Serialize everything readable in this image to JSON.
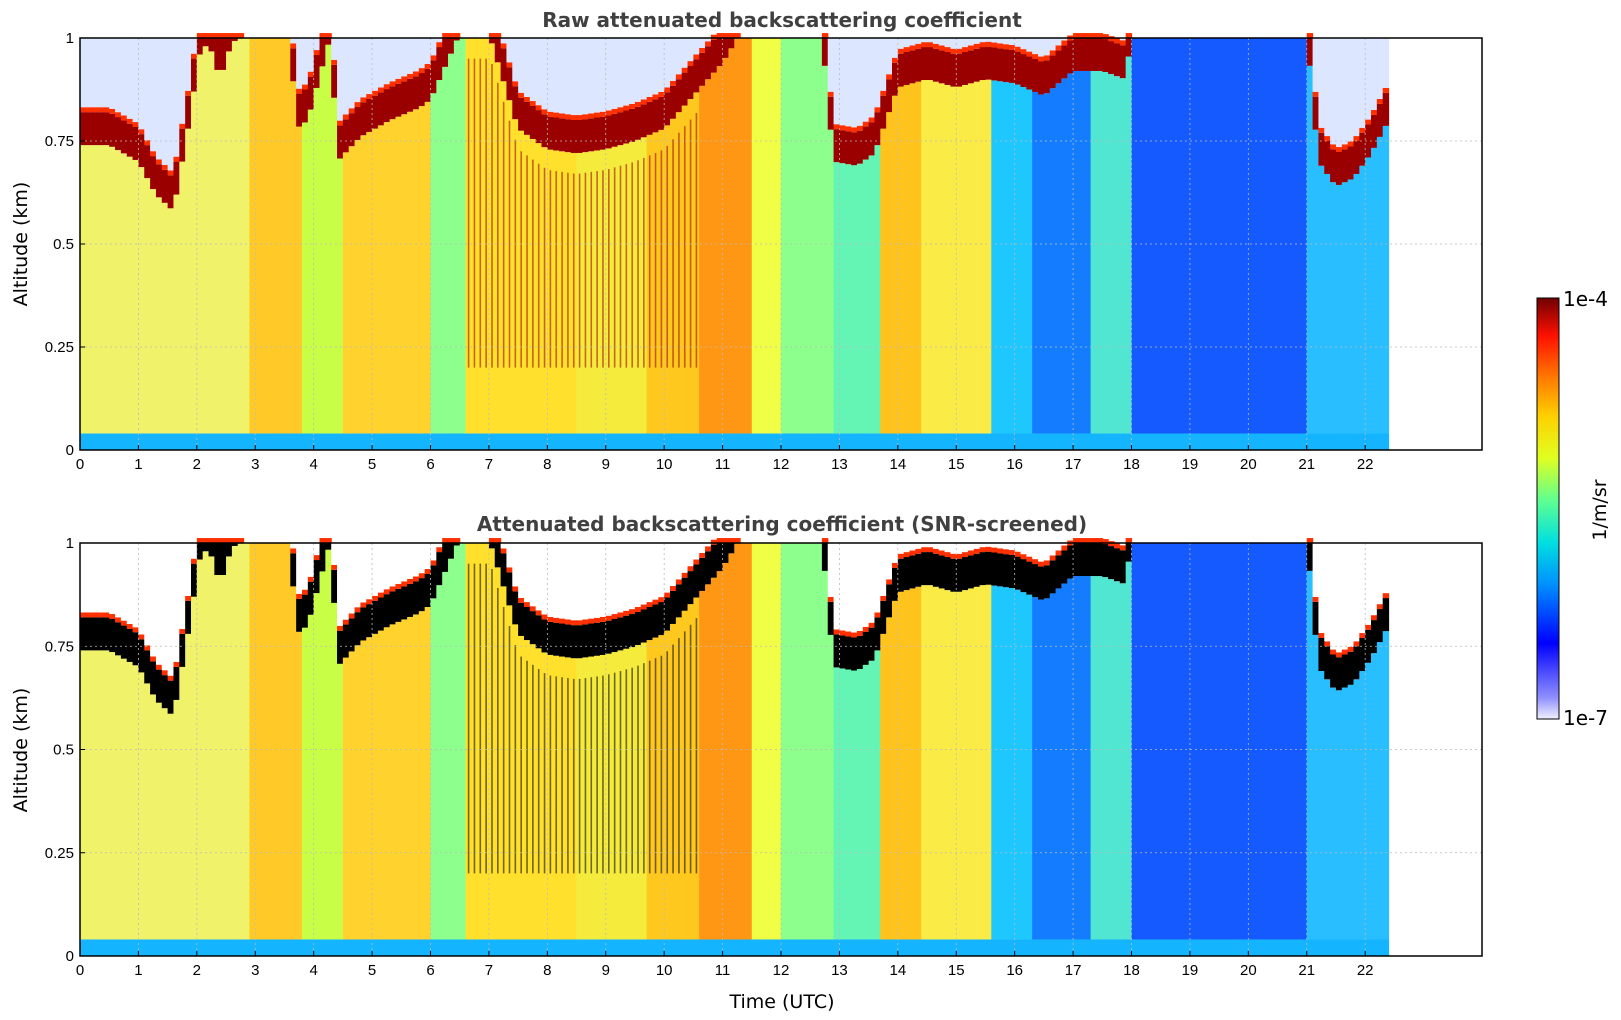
{
  "chart_data": [
    {
      "type": "heatmap",
      "title": "Raw attenuated backscattering coefficient",
      "xlabel": "",
      "ylabel": "Altitude (km)",
      "xlim": [
        0,
        24
      ],
      "ylim": [
        0,
        1
      ],
      "xticks": [
        "0",
        "1",
        "2",
        "3",
        "4",
        "5",
        "6",
        "7",
        "8",
        "9",
        "10",
        "11",
        "12",
        "13",
        "14",
        "15",
        "16",
        "17",
        "18",
        "19",
        "20",
        "21",
        "22"
      ],
      "yticks": [
        "0",
        "0.25",
        "0.5",
        "0.75",
        "1"
      ],
      "grid": true,
      "data_end_hour": 22.4,
      "color_scale": "log",
      "clim": [
        "1e-7",
        "1e-4"
      ],
      "screened": false
    },
    {
      "type": "heatmap",
      "title": "Attenuated backscattering coefficient (SNR-screened)",
      "xlabel": "Time (UTC)",
      "ylabel": "Altitude (km)",
      "xlim": [
        0,
        24
      ],
      "ylim": [
        0,
        1
      ],
      "xticks": [
        "0",
        "1",
        "2",
        "3",
        "4",
        "5",
        "6",
        "7",
        "8",
        "9",
        "10",
        "11",
        "12",
        "13",
        "14",
        "15",
        "16",
        "17",
        "18",
        "19",
        "20",
        "21",
        "22"
      ],
      "yticks": [
        "0",
        "0.25",
        "0.5",
        "0.75",
        "1"
      ],
      "grid": true,
      "data_end_hour": 22.4,
      "color_scale": "log",
      "clim": [
        "1e-7",
        "1e-4"
      ],
      "screened": true
    }
  ],
  "colorbar": {
    "label": "1/m/sr",
    "max_label": "1e-4",
    "min_label": "1e-7",
    "colormap": "jet",
    "colors": [
      "#f0f0ff",
      "#9090ff",
      "#0000ff",
      "#0090ff",
      "#00e0e0",
      "#60ff90",
      "#e0ff20",
      "#ffd000",
      "#ff7000",
      "#ff1000",
      "#a00000",
      "#700000"
    ]
  },
  "profile": {
    "cloud_base_km": [
      [
        0,
        0.74
      ],
      [
        0.5,
        0.74
      ],
      [
        1.0,
        0.7
      ],
      [
        1.3,
        0.62
      ],
      [
        1.6,
        0.58
      ],
      [
        1.85,
        0.78
      ],
      [
        2.05,
        0.96
      ],
      [
        2.2,
        0.99
      ],
      [
        2.4,
        0.9
      ],
      [
        2.6,
        0.99
      ],
      [
        2.95,
        1.01
      ],
      [
        3.6,
        1.01
      ],
      [
        3.7,
        0.78
      ],
      [
        3.9,
        0.8
      ],
      [
        4.3,
        1.01
      ],
      [
        4.4,
        0.7
      ],
      [
        4.8,
        0.76
      ],
      [
        5.3,
        0.8
      ],
      [
        5.8,
        0.83
      ],
      [
        6.0,
        0.85
      ],
      [
        6.5,
        1.01
      ],
      [
        7.0,
        1.01
      ],
      [
        7.5,
        0.78
      ],
      [
        8.0,
        0.73
      ],
      [
        8.5,
        0.72
      ],
      [
        9.0,
        0.73
      ],
      [
        9.5,
        0.75
      ],
      [
        10.0,
        0.78
      ],
      [
        10.5,
        0.86
      ],
      [
        11.0,
        0.94
      ],
      [
        11.3,
        1.01
      ],
      [
        12.7,
        1.01
      ],
      [
        12.9,
        0.7
      ],
      [
        13.3,
        0.69
      ],
      [
        13.6,
        0.72
      ],
      [
        13.8,
        0.8
      ],
      [
        14.0,
        0.88
      ],
      [
        14.5,
        0.9
      ],
      [
        15.0,
        0.88
      ],
      [
        15.5,
        0.9
      ],
      [
        16.0,
        0.89
      ],
      [
        16.5,
        0.86
      ],
      [
        17.0,
        0.92
      ],
      [
        17.5,
        0.92
      ],
      [
        17.9,
        0.9
      ],
      [
        18.0,
        1.01
      ],
      [
        21.0,
        1.01
      ],
      [
        21.2,
        0.7
      ],
      [
        21.5,
        0.64
      ],
      [
        21.8,
        0.66
      ],
      [
        22.1,
        0.72
      ],
      [
        22.4,
        0.8
      ]
    ],
    "regimes": [
      {
        "t0": 0.0,
        "t1": 2.9,
        "color": "#f0f26a",
        "rain": false
      },
      {
        "t0": 2.9,
        "t1": 3.8,
        "color": "#ffca28",
        "rain": false
      },
      {
        "t0": 3.8,
        "t1": 4.5,
        "color": "#c8ff46",
        "rain": false
      },
      {
        "t0": 4.5,
        "t1": 6.0,
        "color": "#ffd22d",
        "rain": false
      },
      {
        "t0": 6.0,
        "t1": 6.6,
        "color": "#8cff8c",
        "rain": false
      },
      {
        "t0": 6.6,
        "t1": 8.5,
        "color": "#ffe12d",
        "rain": true
      },
      {
        "t0": 8.5,
        "t1": 9.7,
        "color": "#f5eb3c",
        "rain": true
      },
      {
        "t0": 9.7,
        "t1": 10.6,
        "color": "#ffc81e",
        "rain": true
      },
      {
        "t0": 10.6,
        "t1": 11.5,
        "color": "#ff9614",
        "rain": false
      },
      {
        "t0": 11.5,
        "t1": 12.0,
        "color": "#f0ff46",
        "rain": false
      },
      {
        "t0": 12.0,
        "t1": 12.9,
        "color": "#8cff8c",
        "rain": false
      },
      {
        "t0": 12.9,
        "t1": 13.7,
        "color": "#64f5b4",
        "rain": false
      },
      {
        "t0": 13.7,
        "t1": 14.4,
        "color": "#ffc31e",
        "rain": false
      },
      {
        "t0": 14.4,
        "t1": 15.6,
        "color": "#faeb46",
        "rain": false
      },
      {
        "t0": 15.6,
        "t1": 16.3,
        "color": "#1ec8ff",
        "rain": false
      },
      {
        "t0": 16.3,
        "t1": 17.3,
        "color": "#147dff",
        "rain": false
      },
      {
        "t0": 17.3,
        "t1": 18.0,
        "color": "#50e6d2",
        "rain": false
      },
      {
        "t0": 18.0,
        "t1": 21.0,
        "color": "#145aff",
        "rain": false
      },
      {
        "t0": 21.0,
        "t1": 22.4,
        "color": "#28beff",
        "rain": false
      }
    ]
  }
}
